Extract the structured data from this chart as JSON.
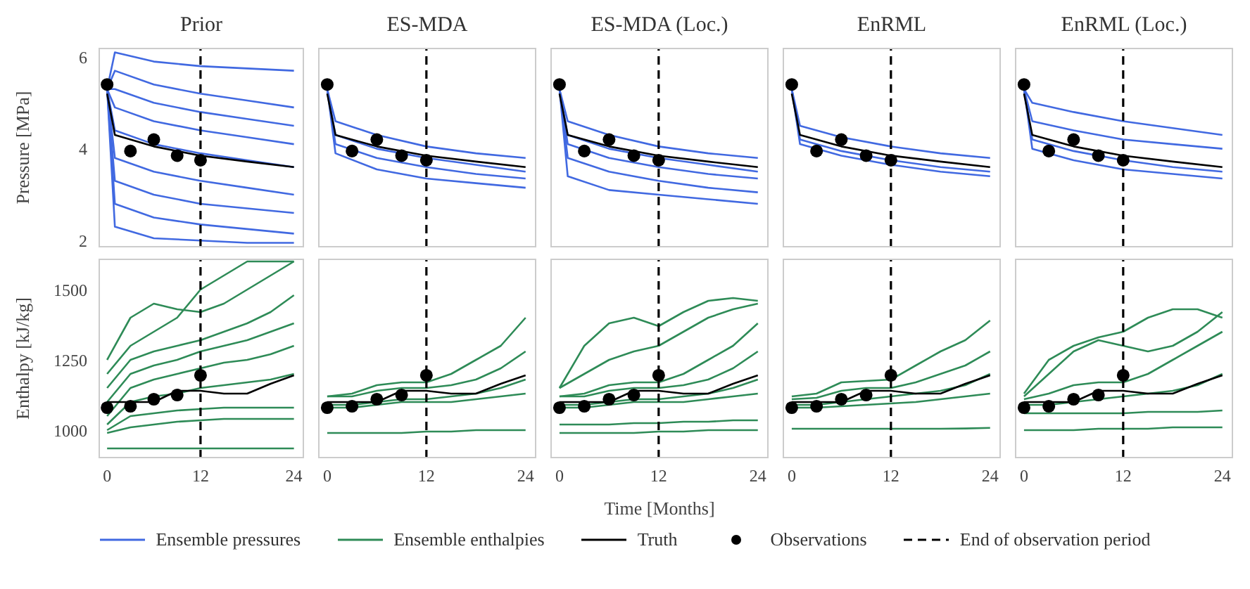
{
  "chart_data": [
    {
      "type": "line",
      "title": "Prior",
      "ylabel": "Pressure [MPa]",
      "x": [
        0,
        1,
        6,
        12,
        18,
        24
      ],
      "xlim": [
        -1.1,
        25.3
      ],
      "xticks": [
        0,
        12,
        24
      ],
      "ylim": [
        1.85,
        6.2
      ],
      "yticks": [
        2,
        4,
        6
      ],
      "tick_labels": "y",
      "legend": "bottom",
      "series": [
        {
          "name": "Ensemble pressures",
          "color": "#4169e1",
          "values": [
            5.3,
            6.1,
            5.9,
            5.8,
            5.75,
            5.7
          ]
        },
        {
          "color": "#4169e1",
          "values": [
            5.3,
            5.7,
            5.4,
            5.2,
            5.05,
            4.9
          ]
        },
        {
          "color": "#4169e1",
          "values": [
            5.3,
            5.3,
            5.0,
            4.8,
            4.65,
            4.5
          ]
        },
        {
          "color": "#4169e1",
          "values": [
            5.3,
            4.9,
            4.6,
            4.4,
            4.25,
            4.1
          ]
        },
        {
          "color": "#4169e1",
          "values": [
            5.3,
            4.4,
            4.1,
            3.9,
            3.75,
            3.6
          ]
        },
        {
          "color": "#4169e1",
          "values": [
            5.3,
            3.8,
            3.5,
            3.3,
            3.15,
            3.0
          ]
        },
        {
          "color": "#4169e1",
          "values": [
            5.3,
            3.3,
            3.0,
            2.8,
            2.7,
            2.6
          ]
        },
        {
          "color": "#4169e1",
          "values": [
            5.3,
            2.8,
            2.5,
            2.35,
            2.25,
            2.15
          ]
        },
        {
          "color": "#4169e1",
          "values": [
            5.3,
            2.3,
            2.05,
            2.0,
            1.95,
            1.95
          ]
        },
        {
          "name": "Truth",
          "color": "#000000",
          "values": [
            5.2,
            4.3,
            4.05,
            3.85,
            3.72,
            3.6
          ]
        },
        {
          "name": "Observations",
          "type": "scatter",
          "marker": "circle",
          "color": "#000000",
          "x": [
            0,
            3,
            6,
            9,
            12
          ],
          "values": [
            5.4,
            3.95,
            4.2,
            3.85,
            3.75
          ]
        }
      ],
      "ref_lines": [
        {
          "axis": "x",
          "value": 12,
          "label": "End of observation period",
          "color": "#000000",
          "line_style": "dashed"
        }
      ]
    },
    {
      "type": "line",
      "title": "ES-MDA",
      "x": [
        0,
        1,
        6,
        12,
        18,
        24
      ],
      "xlim": [
        -1.1,
        25.3
      ],
      "xticks": [
        0,
        12,
        24
      ],
      "ylim": [
        1.85,
        6.2
      ],
      "yticks": [
        2,
        4,
        6
      ],
      "tick_labels": false,
      "series": [
        {
          "color": "#4169e1",
          "values": [
            5.3,
            4.6,
            4.3,
            4.05,
            3.9,
            3.8
          ]
        },
        {
          "color": "#4169e1",
          "values": [
            5.3,
            4.3,
            4.0,
            3.8,
            3.65,
            3.5
          ]
        },
        {
          "color": "#4169e1",
          "values": [
            5.3,
            4.1,
            3.8,
            3.6,
            3.45,
            3.35
          ]
        },
        {
          "color": "#4169e1",
          "values": [
            5.3,
            3.9,
            3.55,
            3.35,
            3.25,
            3.15
          ]
        },
        {
          "color": "#000000",
          "values": [
            5.2,
            4.3,
            4.05,
            3.85,
            3.72,
            3.6
          ]
        },
        {
          "type": "scatter",
          "marker": "circle",
          "color": "#000000",
          "x": [
            0,
            3,
            6,
            9,
            12
          ],
          "values": [
            5.4,
            3.95,
            4.2,
            3.85,
            3.75
          ]
        }
      ],
      "ref_lines": [
        {
          "axis": "x",
          "value": 12,
          "color": "#000000",
          "line_style": "dashed"
        }
      ]
    },
    {
      "type": "line",
      "title": "ES-MDA (Loc.)",
      "x": [
        0,
        1,
        6,
        12,
        18,
        24
      ],
      "xlim": [
        -1.1,
        25.3
      ],
      "xticks": [
        0,
        12,
        24
      ],
      "ylim": [
        1.85,
        6.2
      ],
      "yticks": [
        2,
        4,
        6
      ],
      "tick_labels": false,
      "series": [
        {
          "color": "#4169e1",
          "values": [
            5.3,
            4.6,
            4.3,
            4.05,
            3.9,
            3.8
          ]
        },
        {
          "color": "#4169e1",
          "values": [
            5.3,
            4.3,
            4.0,
            3.8,
            3.65,
            3.5
          ]
        },
        {
          "color": "#4169e1",
          "values": [
            5.3,
            4.1,
            3.8,
            3.6,
            3.45,
            3.35
          ]
        },
        {
          "color": "#4169e1",
          "values": [
            5.3,
            3.8,
            3.5,
            3.3,
            3.15,
            3.05
          ]
        },
        {
          "color": "#4169e1",
          "values": [
            5.3,
            3.4,
            3.1,
            3.0,
            2.9,
            2.8
          ]
        },
        {
          "color": "#000000",
          "values": [
            5.2,
            4.3,
            4.05,
            3.85,
            3.72,
            3.6
          ]
        },
        {
          "type": "scatter",
          "marker": "circle",
          "color": "#000000",
          "x": [
            0,
            3,
            6,
            9,
            12
          ],
          "values": [
            5.4,
            3.95,
            4.2,
            3.85,
            3.75
          ]
        }
      ],
      "ref_lines": [
        {
          "axis": "x",
          "value": 12,
          "color": "#000000",
          "line_style": "dashed"
        }
      ]
    },
    {
      "type": "line",
      "title": "EnRML",
      "x": [
        0,
        1,
        6,
        12,
        18,
        24
      ],
      "xlim": [
        -1.1,
        25.3
      ],
      "xticks": [
        0,
        12,
        24
      ],
      "ylim": [
        1.85,
        6.2
      ],
      "yticks": [
        2,
        4,
        6
      ],
      "tick_labels": false,
      "series": [
        {
          "color": "#4169e1",
          "values": [
            5.3,
            4.5,
            4.25,
            4.05,
            3.9,
            3.8
          ]
        },
        {
          "color": "#4169e1",
          "values": [
            5.3,
            4.2,
            3.95,
            3.75,
            3.6,
            3.5
          ]
        },
        {
          "color": "#4169e1",
          "values": [
            5.3,
            4.1,
            3.85,
            3.65,
            3.5,
            3.4
          ]
        },
        {
          "color": "#000000",
          "values": [
            5.2,
            4.3,
            4.05,
            3.85,
            3.72,
            3.6
          ]
        },
        {
          "type": "scatter",
          "marker": "circle",
          "color": "#000000",
          "x": [
            0,
            3,
            6,
            9,
            12
          ],
          "values": [
            5.4,
            3.95,
            4.2,
            3.85,
            3.75
          ]
        }
      ],
      "ref_lines": [
        {
          "axis": "x",
          "value": 12,
          "color": "#000000",
          "line_style": "dashed"
        }
      ]
    },
    {
      "type": "line",
      "title": "EnRML (Loc.)",
      "x": [
        0,
        1,
        6,
        12,
        18,
        24
      ],
      "xlim": [
        -1.1,
        25.3
      ],
      "xticks": [
        0,
        12,
        24
      ],
      "ylim": [
        1.85,
        6.2
      ],
      "yticks": [
        2,
        4,
        6
      ],
      "tick_labels": false,
      "series": [
        {
          "color": "#4169e1",
          "values": [
            5.3,
            5.0,
            4.8,
            4.6,
            4.45,
            4.3
          ]
        },
        {
          "color": "#4169e1",
          "values": [
            5.3,
            4.6,
            4.4,
            4.2,
            4.1,
            4.0
          ]
        },
        {
          "color": "#4169e1",
          "values": [
            5.3,
            4.2,
            3.95,
            3.75,
            3.6,
            3.5
          ]
        },
        {
          "color": "#4169e1",
          "values": [
            5.3,
            4.0,
            3.75,
            3.55,
            3.45,
            3.35
          ]
        },
        {
          "color": "#000000",
          "values": [
            5.2,
            4.3,
            4.05,
            3.85,
            3.72,
            3.6
          ]
        },
        {
          "type": "scatter",
          "marker": "circle",
          "color": "#000000",
          "x": [
            0,
            3,
            6,
            9,
            12
          ],
          "values": [
            5.4,
            3.95,
            4.2,
            3.85,
            3.75
          ]
        }
      ],
      "ref_lines": [
        {
          "axis": "x",
          "value": 12,
          "color": "#000000",
          "line_style": "dashed"
        }
      ]
    },
    {
      "type": "line",
      "ylabel": "Enthalpy [kJ/kg]",
      "x": [
        0,
        3,
        6,
        9,
        12,
        15,
        18,
        21,
        24
      ],
      "xlim": [
        -1.1,
        25.3
      ],
      "xticks": [
        0,
        12,
        24
      ],
      "ylim": [
        900,
        1610
      ],
      "yticks": [
        1000,
        1250,
        1500
      ],
      "legend": "bottom",
      "series": [
        {
          "name": "Ensemble enthalpies",
          "color": "#2e8b57",
          "values": [
            1250,
            1400,
            1450,
            1430,
            1420,
            1450,
            1500,
            1550,
            1600
          ]
        },
        {
          "color": "#2e8b57",
          "values": [
            1200,
            1300,
            1350,
            1400,
            1500,
            1550,
            1600,
            1600,
            1600
          ]
        },
        {
          "color": "#2e8b57",
          "values": [
            1150,
            1250,
            1280,
            1300,
            1320,
            1350,
            1380,
            1420,
            1480
          ]
        },
        {
          "color": "#2e8b57",
          "values": [
            1100,
            1200,
            1230,
            1250,
            1280,
            1300,
            1320,
            1350,
            1380
          ]
        },
        {
          "color": "#2e8b57",
          "values": [
            1050,
            1150,
            1180,
            1200,
            1220,
            1240,
            1250,
            1270,
            1300
          ]
        },
        {
          "color": "#2e8b57",
          "values": [
            1020,
            1100,
            1120,
            1130,
            1150,
            1160,
            1170,
            1180,
            1200
          ]
        },
        {
          "color": "#2e8b57",
          "values": [
            1000,
            1050,
            1060,
            1070,
            1075,
            1080,
            1080,
            1080,
            1080
          ]
        },
        {
          "color": "#2e8b57",
          "values": [
            990,
            1010,
            1020,
            1030,
            1035,
            1040,
            1040,
            1040,
            1040
          ]
        },
        {
          "color": "#2e8b57",
          "values": [
            935,
            935,
            935,
            935,
            935,
            935,
            935,
            935,
            935
          ]
        },
        {
          "color": "#000000",
          "values": [
            1100,
            1100,
            1100,
            1140,
            1140,
            1130,
            1130,
            1165,
            1195
          ]
        },
        {
          "type": "scatter",
          "marker": "circle",
          "color": "#000000",
          "x": [
            0,
            3,
            6,
            9,
            12
          ],
          "values": [
            1080,
            1085,
            1110,
            1125,
            1195
          ]
        }
      ],
      "ref_lines": [
        {
          "axis": "x",
          "value": 12,
          "color": "#000000",
          "line_style": "dashed"
        }
      ]
    },
    {
      "type": "line",
      "x": [
        0,
        3,
        6,
        9,
        12,
        15,
        18,
        21,
        24
      ],
      "xlim": [
        -1.1,
        25.3
      ],
      "xticks": [
        0,
        12,
        24
      ],
      "ylim": [
        900,
        1610
      ],
      "yticks": [
        1000,
        1250,
        1500
      ],
      "tick_labels": "x",
      "series": [
        {
          "color": "#2e8b57",
          "values": [
            1120,
            1130,
            1160,
            1170,
            1170,
            1200,
            1250,
            1300,
            1400
          ]
        },
        {
          "color": "#2e8b57",
          "values": [
            1120,
            1120,
            1140,
            1150,
            1150,
            1160,
            1180,
            1220,
            1280
          ]
        },
        {
          "color": "#2e8b57",
          "values": [
            1090,
            1090,
            1100,
            1110,
            1110,
            1120,
            1130,
            1150,
            1180
          ]
        },
        {
          "color": "#2e8b57",
          "values": [
            1080,
            1080,
            1090,
            1100,
            1100,
            1100,
            1110,
            1120,
            1130
          ]
        },
        {
          "color": "#2e8b57",
          "values": [
            990,
            990,
            990,
            990,
            995,
            995,
            1000,
            1000,
            1000
          ]
        },
        {
          "color": "#000000",
          "values": [
            1100,
            1100,
            1100,
            1140,
            1140,
            1130,
            1130,
            1165,
            1195
          ]
        },
        {
          "type": "scatter",
          "marker": "circle",
          "color": "#000000",
          "x": [
            0,
            3,
            6,
            9,
            12
          ],
          "values": [
            1080,
            1085,
            1110,
            1125,
            1195
          ]
        }
      ],
      "ref_lines": [
        {
          "axis": "x",
          "value": 12,
          "color": "#000000",
          "line_style": "dashed"
        }
      ]
    },
    {
      "type": "line",
      "xlabel": "Time [Months]",
      "x": [
        0,
        3,
        6,
        9,
        12,
        15,
        18,
        21,
        24
      ],
      "xlim": [
        -1.1,
        25.3
      ],
      "xticks": [
        0,
        12,
        24
      ],
      "ylim": [
        900,
        1610
      ],
      "yticks": [
        1000,
        1250,
        1500
      ],
      "tick_labels": "x",
      "series": [
        {
          "color": "#2e8b57",
          "values": [
            1150,
            1300,
            1380,
            1400,
            1370,
            1420,
            1460,
            1470,
            1460
          ]
        },
        {
          "color": "#2e8b57",
          "values": [
            1150,
            1200,
            1250,
            1280,
            1300,
            1350,
            1400,
            1430,
            1450
          ]
        },
        {
          "color": "#2e8b57",
          "values": [
            1120,
            1130,
            1160,
            1170,
            1170,
            1200,
            1250,
            1300,
            1380
          ]
        },
        {
          "color": "#2e8b57",
          "values": [
            1120,
            1120,
            1140,
            1150,
            1150,
            1160,
            1180,
            1220,
            1280
          ]
        },
        {
          "color": "#2e8b57",
          "values": [
            1090,
            1090,
            1100,
            1110,
            1110,
            1120,
            1130,
            1150,
            1180
          ]
        },
        {
          "color": "#2e8b57",
          "values": [
            1080,
            1080,
            1090,
            1100,
            1100,
            1100,
            1110,
            1120,
            1130
          ]
        },
        {
          "color": "#2e8b57",
          "values": [
            1020,
            1020,
            1020,
            1025,
            1025,
            1030,
            1030,
            1035,
            1035
          ]
        },
        {
          "color": "#2e8b57",
          "values": [
            990,
            990,
            990,
            990,
            995,
            995,
            1000,
            1000,
            1000
          ]
        },
        {
          "color": "#000000",
          "values": [
            1100,
            1100,
            1100,
            1140,
            1140,
            1130,
            1130,
            1165,
            1195
          ]
        },
        {
          "type": "scatter",
          "marker": "circle",
          "color": "#000000",
          "x": [
            0,
            3,
            6,
            9,
            12
          ],
          "values": [
            1080,
            1085,
            1110,
            1125,
            1195
          ]
        }
      ],
      "ref_lines": [
        {
          "axis": "x",
          "value": 12,
          "color": "#000000",
          "line_style": "dashed"
        }
      ]
    },
    {
      "type": "line",
      "x": [
        0,
        3,
        6,
        9,
        12,
        15,
        18,
        21,
        24
      ],
      "xlim": [
        -1.1,
        25.3
      ],
      "xticks": [
        0,
        12,
        24
      ],
      "ylim": [
        900,
        1610
      ],
      "yticks": [
        1000,
        1250,
        1500
      ],
      "tick_labels": "x",
      "series": [
        {
          "color": "#2e8b57",
          "values": [
            1120,
            1130,
            1170,
            1175,
            1180,
            1230,
            1280,
            1320,
            1390
          ]
        },
        {
          "color": "#2e8b57",
          "values": [
            1110,
            1115,
            1140,
            1150,
            1150,
            1170,
            1200,
            1230,
            1280
          ]
        },
        {
          "color": "#2e8b57",
          "values": [
            1090,
            1090,
            1100,
            1110,
            1120,
            1130,
            1140,
            1160,
            1200
          ]
        },
        {
          "color": "#2e8b57",
          "values": [
            1080,
            1080,
            1085,
            1090,
            1095,
            1100,
            1110,
            1120,
            1130
          ]
        },
        {
          "color": "#2e8b57",
          "values": [
            1005,
            1005,
            1005,
            1005,
            1005,
            1005,
            1005,
            1006,
            1008
          ]
        },
        {
          "color": "#000000",
          "values": [
            1100,
            1100,
            1100,
            1140,
            1140,
            1130,
            1130,
            1165,
            1195
          ]
        },
        {
          "type": "scatter",
          "marker": "circle",
          "color": "#000000",
          "x": [
            0,
            3,
            6,
            9,
            12
          ],
          "values": [
            1080,
            1085,
            1110,
            1125,
            1195
          ]
        }
      ],
      "ref_lines": [
        {
          "axis": "x",
          "value": 12,
          "color": "#000000",
          "line_style": "dashed"
        }
      ]
    },
    {
      "type": "line",
      "x": [
        0,
        3,
        6,
        9,
        12,
        15,
        18,
        21,
        24
      ],
      "xlim": [
        -1.1,
        25.3
      ],
      "xticks": [
        0,
        12,
        24
      ],
      "ylim": [
        900,
        1610
      ],
      "yticks": [
        1000,
        1250,
        1500
      ],
      "tick_labels": "x",
      "series": [
        {
          "color": "#2e8b57",
          "values": [
            1130,
            1250,
            1300,
            1330,
            1350,
            1400,
            1430,
            1430,
            1400
          ]
        },
        {
          "color": "#2e8b57",
          "values": [
            1120,
            1200,
            1280,
            1320,
            1300,
            1280,
            1300,
            1350,
            1420
          ]
        },
        {
          "color": "#2e8b57",
          "values": [
            1110,
            1130,
            1160,
            1170,
            1170,
            1200,
            1250,
            1300,
            1350
          ]
        },
        {
          "color": "#2e8b57",
          "values": [
            1090,
            1090,
            1100,
            1110,
            1120,
            1130,
            1140,
            1160,
            1200
          ]
        },
        {
          "color": "#2e8b57",
          "values": [
            1060,
            1060,
            1060,
            1060,
            1060,
            1065,
            1065,
            1065,
            1070
          ]
        },
        {
          "color": "#2e8b57",
          "values": [
            1000,
            1000,
            1000,
            1005,
            1005,
            1005,
            1010,
            1010,
            1010
          ]
        },
        {
          "color": "#000000",
          "values": [
            1100,
            1100,
            1100,
            1140,
            1140,
            1130,
            1130,
            1165,
            1195
          ]
        },
        {
          "type": "scatter",
          "marker": "circle",
          "color": "#000000",
          "x": [
            0,
            3,
            6,
            9,
            12
          ],
          "values": [
            1080,
            1085,
            1110,
            1125,
            1195
          ]
        }
      ],
      "ref_lines": [
        {
          "axis": "x",
          "value": 12,
          "color": "#000000",
          "line_style": "dashed"
        }
      ]
    }
  ]
}
